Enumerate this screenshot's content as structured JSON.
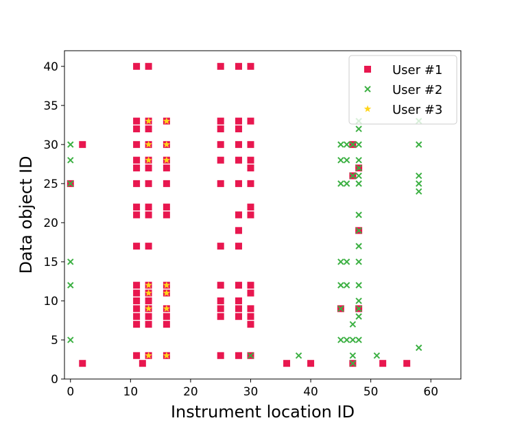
{
  "chart_data": {
    "type": "scatter",
    "title": "",
    "xlabel": "Instrument location ID",
    "ylabel": "Data object ID",
    "xlim": [
      -1,
      65
    ],
    "ylim": [
      0,
      42
    ],
    "xticks": [
      "0",
      "10",
      "20",
      "30",
      "40",
      "50",
      "60"
    ],
    "yticks": [
      "0",
      "5",
      "10",
      "15",
      "20",
      "25",
      "30",
      "35",
      "40"
    ],
    "grid": false,
    "legend_position": "top-right",
    "series": [
      {
        "name": "User #1",
        "marker": "square",
        "color": "#e8174f",
        "points": [
          [
            0,
            25
          ],
          [
            2,
            30
          ],
          [
            2,
            2
          ],
          [
            11,
            40
          ],
          [
            11,
            33
          ],
          [
            11,
            32
          ],
          [
            11,
            30
          ],
          [
            11,
            28
          ],
          [
            11,
            27
          ],
          [
            11,
            25
          ],
          [
            11,
            22
          ],
          [
            11,
            21
          ],
          [
            11,
            17
          ],
          [
            11,
            12
          ],
          [
            11,
            11
          ],
          [
            11,
            10
          ],
          [
            11,
            9
          ],
          [
            11,
            8
          ],
          [
            11,
            7
          ],
          [
            11,
            3
          ],
          [
            12,
            2
          ],
          [
            13,
            40
          ],
          [
            13,
            33
          ],
          [
            13,
            32
          ],
          [
            13,
            30
          ],
          [
            13,
            28
          ],
          [
            13,
            27
          ],
          [
            13,
            25
          ],
          [
            13,
            22
          ],
          [
            13,
            21
          ],
          [
            13,
            17
          ],
          [
            13,
            12
          ],
          [
            13,
            11
          ],
          [
            13,
            10
          ],
          [
            13,
            9
          ],
          [
            13,
            8
          ],
          [
            13,
            7
          ],
          [
            13,
            3
          ],
          [
            16,
            33
          ],
          [
            16,
            30
          ],
          [
            16,
            28
          ],
          [
            16,
            27
          ],
          [
            16,
            25
          ],
          [
            16,
            22
          ],
          [
            16,
            21
          ],
          [
            16,
            12
          ],
          [
            16,
            11
          ],
          [
            16,
            9
          ],
          [
            16,
            8
          ],
          [
            16,
            7
          ],
          [
            16,
            3
          ],
          [
            25,
            40
          ],
          [
            25,
            33
          ],
          [
            25,
            32
          ],
          [
            25,
            30
          ],
          [
            25,
            28
          ],
          [
            25,
            25
          ],
          [
            25,
            17
          ],
          [
            25,
            12
          ],
          [
            25,
            10
          ],
          [
            25,
            9
          ],
          [
            25,
            8
          ],
          [
            25,
            3
          ],
          [
            28,
            40
          ],
          [
            28,
            33
          ],
          [
            28,
            32
          ],
          [
            28,
            30
          ],
          [
            28,
            28
          ],
          [
            28,
            25
          ],
          [
            28,
            21
          ],
          [
            28,
            19
          ],
          [
            28,
            17
          ],
          [
            28,
            12
          ],
          [
            28,
            10
          ],
          [
            28,
            9
          ],
          [
            28,
            8
          ],
          [
            28,
            3
          ],
          [
            30,
            40
          ],
          [
            30,
            33
          ],
          [
            30,
            30
          ],
          [
            30,
            28
          ],
          [
            30,
            27
          ],
          [
            30,
            25
          ],
          [
            30,
            22
          ],
          [
            30,
            21
          ],
          [
            30,
            12
          ],
          [
            30,
            11
          ],
          [
            30,
            9
          ],
          [
            30,
            8
          ],
          [
            30,
            7
          ],
          [
            30,
            3
          ],
          [
            36,
            2
          ],
          [
            40,
            2
          ],
          [
            45,
            9
          ],
          [
            47,
            30
          ],
          [
            47,
            26
          ],
          [
            47,
            2
          ],
          [
            48,
            27
          ],
          [
            48,
            19
          ],
          [
            48,
            9
          ],
          [
            52,
            2
          ],
          [
            56,
            2
          ]
        ]
      },
      {
        "name": "User #2",
        "marker": "x",
        "color": "#3cb043",
        "points": [
          [
            0,
            30
          ],
          [
            0,
            28
          ],
          [
            0,
            25
          ],
          [
            0,
            15
          ],
          [
            0,
            12
          ],
          [
            0,
            5
          ],
          [
            30,
            3
          ],
          [
            38,
            3
          ],
          [
            45,
            30
          ],
          [
            45,
            28
          ],
          [
            45,
            25
          ],
          [
            45,
            15
          ],
          [
            45,
            12
          ],
          [
            45,
            9
          ],
          [
            45,
            5
          ],
          [
            46,
            30
          ],
          [
            46,
            28
          ],
          [
            46,
            25
          ],
          [
            46,
            15
          ],
          [
            46,
            12
          ],
          [
            46,
            5
          ],
          [
            47,
            30
          ],
          [
            47,
            26
          ],
          [
            47,
            7
          ],
          [
            47,
            5
          ],
          [
            47,
            3
          ],
          [
            47,
            2
          ],
          [
            48,
            33
          ],
          [
            48,
            32
          ],
          [
            48,
            30
          ],
          [
            48,
            28
          ],
          [
            48,
            27
          ],
          [
            48,
            26
          ],
          [
            48,
            25
          ],
          [
            48,
            21
          ],
          [
            48,
            19
          ],
          [
            48,
            17
          ],
          [
            48,
            15
          ],
          [
            48,
            12
          ],
          [
            48,
            10
          ],
          [
            48,
            9
          ],
          [
            48,
            8
          ],
          [
            48,
            5
          ],
          [
            51,
            3
          ],
          [
            58,
            33
          ],
          [
            58,
            30
          ],
          [
            58,
            26
          ],
          [
            58,
            25
          ],
          [
            58,
            24
          ],
          [
            58,
            4
          ]
        ]
      },
      {
        "name": "User #3",
        "marker": "star",
        "color": "#ffd51a",
        "points": [
          [
            13,
            33
          ],
          [
            13,
            30
          ],
          [
            13,
            28
          ],
          [
            13,
            12
          ],
          [
            13,
            11
          ],
          [
            13,
            9
          ],
          [
            13,
            3
          ],
          [
            16,
            33
          ],
          [
            16,
            30
          ],
          [
            16,
            28
          ],
          [
            16,
            12
          ],
          [
            16,
            11
          ],
          [
            16,
            9
          ],
          [
            16,
            3
          ]
        ]
      }
    ]
  }
}
